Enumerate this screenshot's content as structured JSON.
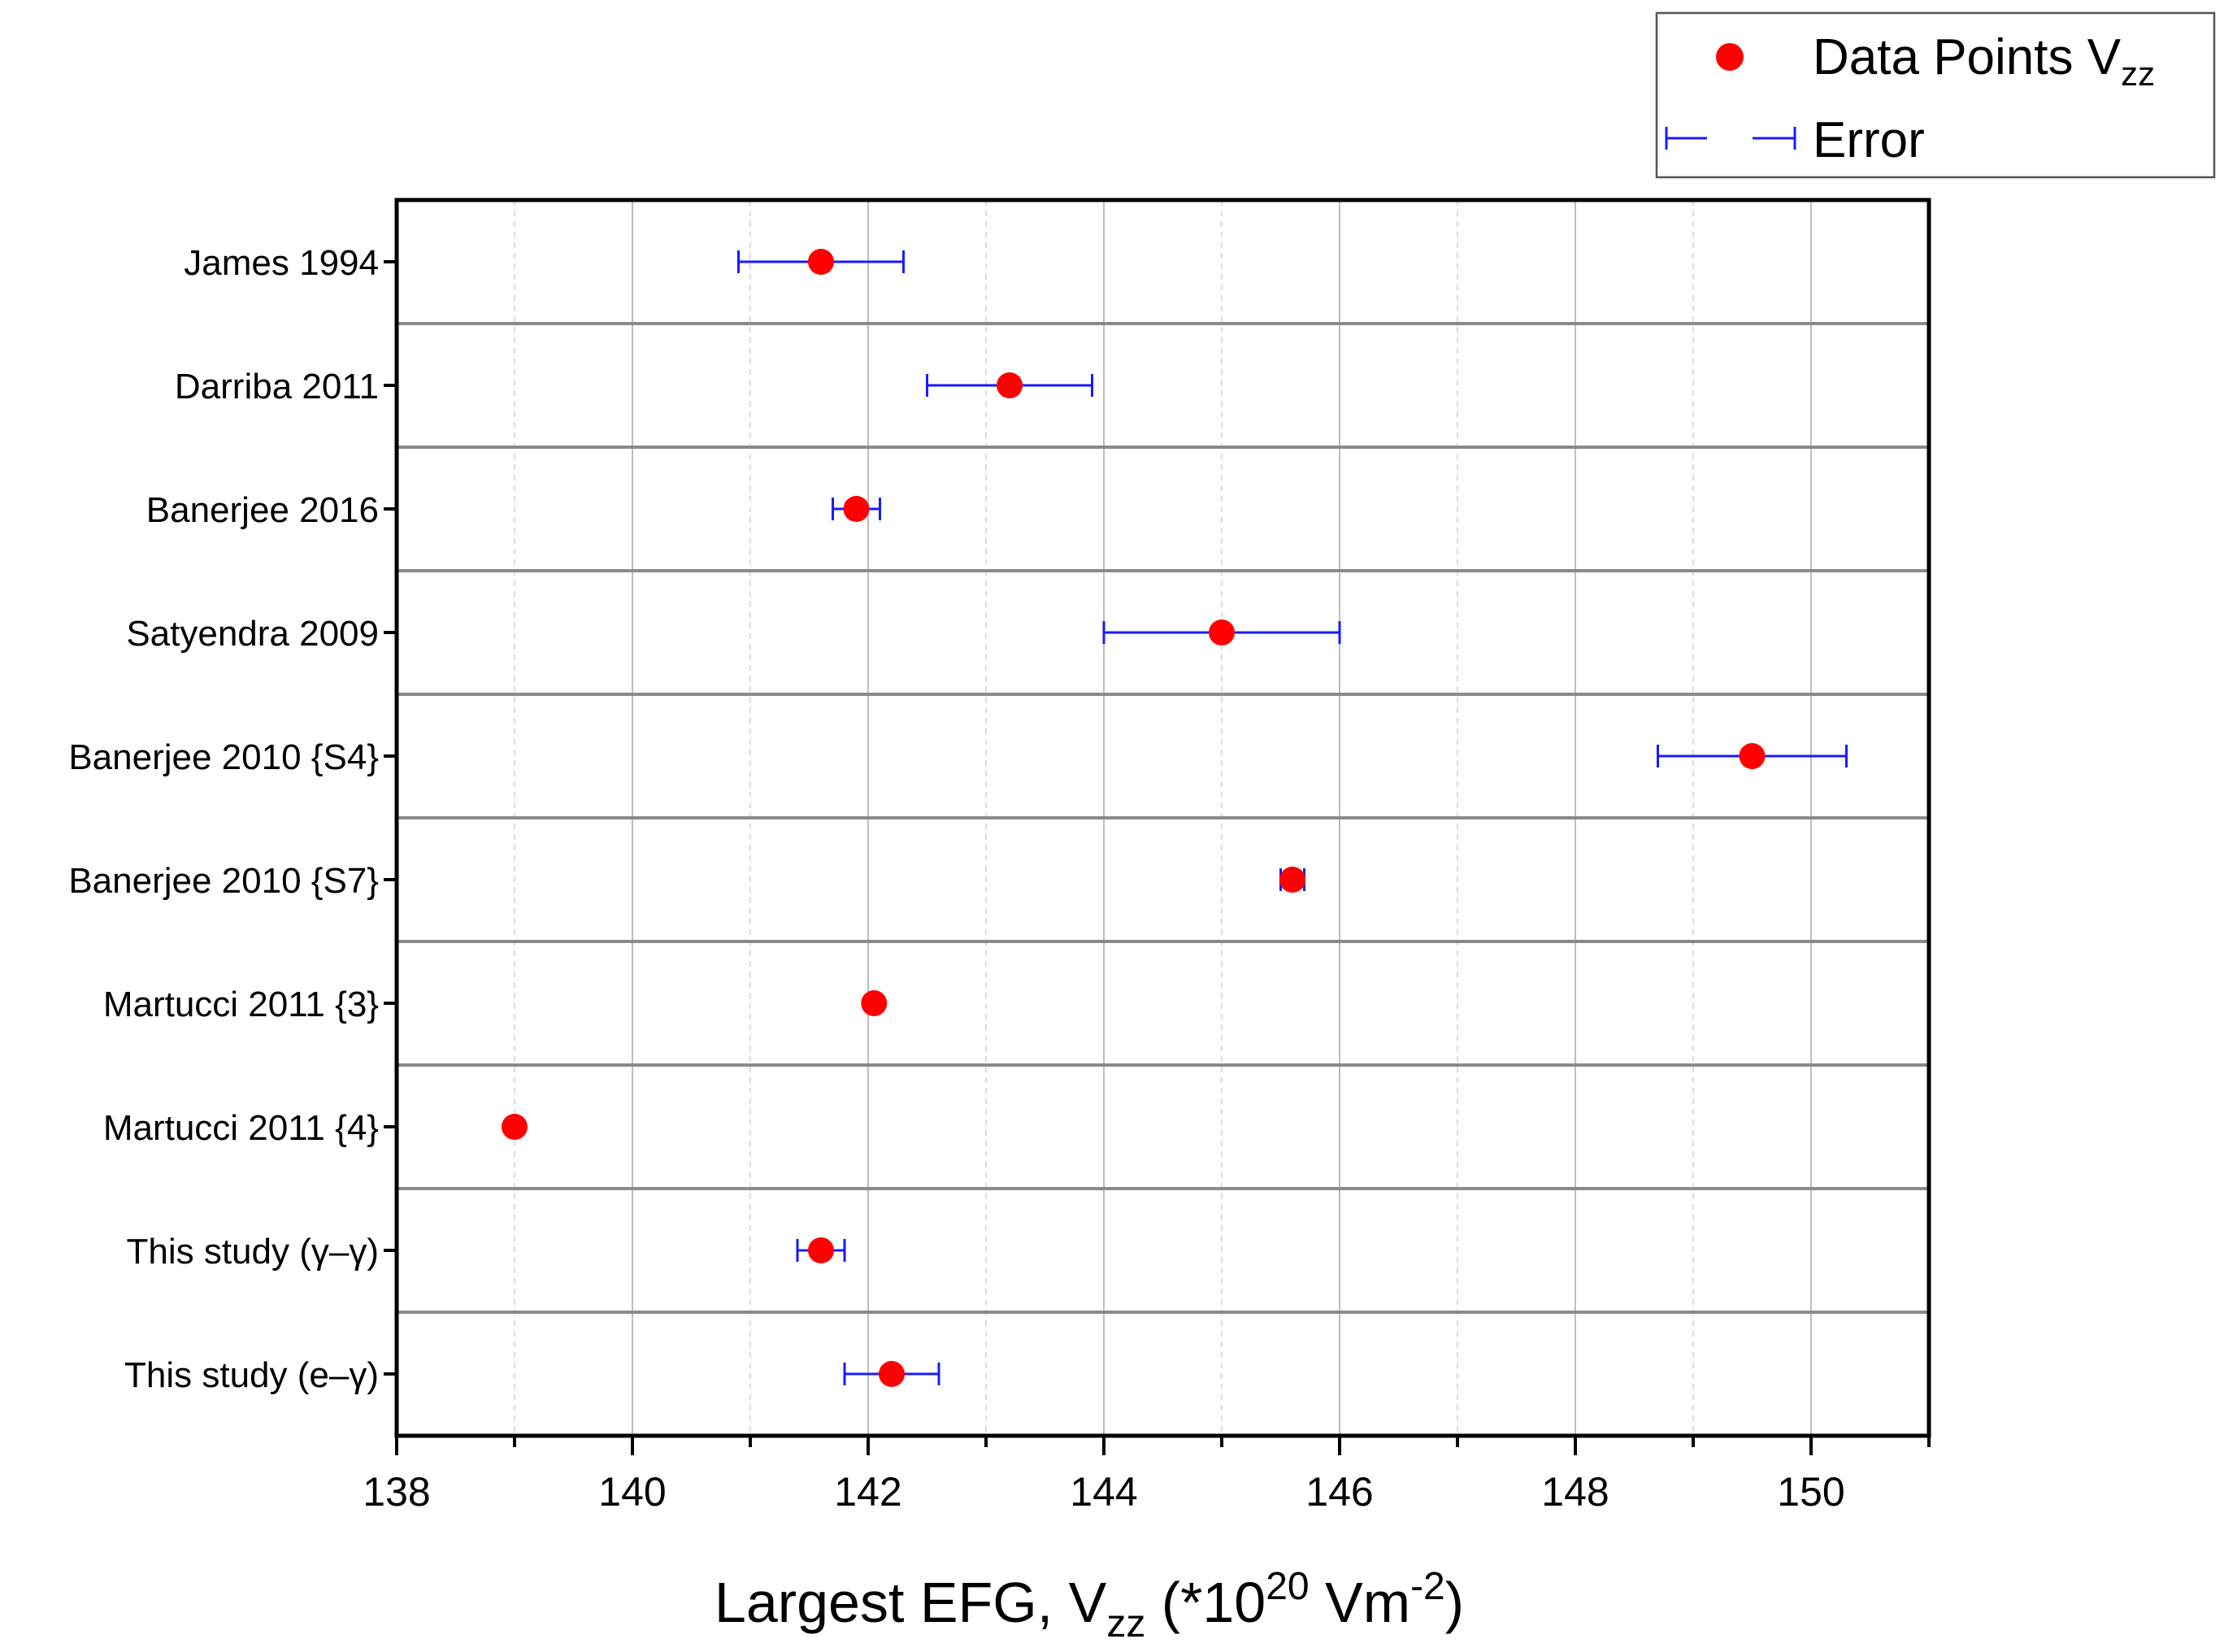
{
  "chart_data": {
    "type": "scatter",
    "orientation": "horizontal",
    "title": "",
    "xlabel": {
      "main": "Largest EFG, V",
      "sub": "zz",
      "mid": " (*10",
      "sup1": "20",
      "tail": " Vm",
      "sup2": "-2",
      "end": ")"
    },
    "ylabel": "",
    "xlim": [
      138,
      151
    ],
    "xticks": [
      138,
      140,
      142,
      144,
      146,
      148,
      150
    ],
    "grid": true,
    "legend_position": "top-right",
    "colors": {
      "points": "#ff0000",
      "error": "#1a1aff",
      "separator": "#8a8a8a",
      "grid_major": "#bdbdbd",
      "grid_minor": "#d4d4d4"
    },
    "legend": {
      "points_label": "Data Points V",
      "points_sub": "zz",
      "error_label": "Error"
    },
    "categories": [
      "James 1994",
      "Darriba 2011",
      "Banerjee 2016",
      "Satyendra 2009",
      "Banerjee 2010 {S4}",
      "Banerjee 2010 {S7}",
      "Martucci 2011 {3}",
      "Martucci 2011 {4}",
      "This study (γ–γ)",
      "This study (e–γ)"
    ],
    "series": [
      {
        "name": "Data Points Vzz",
        "values": [
          141.6,
          143.2,
          141.9,
          145.0,
          149.5,
          145.6,
          142.05,
          139.0,
          141.6,
          142.2
        ],
        "errors": [
          0.7,
          0.7,
          0.2,
          1.0,
          0.8,
          0.1,
          null,
          null,
          0.2,
          0.4
        ]
      }
    ]
  }
}
